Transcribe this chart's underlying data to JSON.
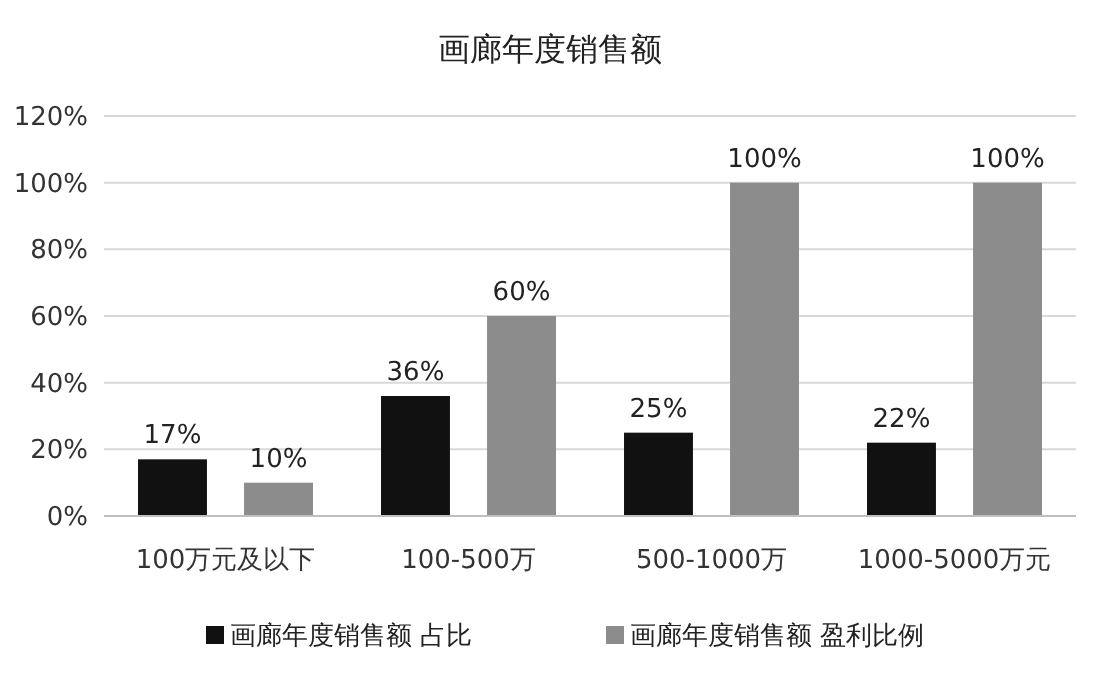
{
  "chart_data": {
    "type": "bar",
    "title": "画廊年度销售额",
    "categories": [
      "100万元及以下",
      "100-500万",
      "500-1000万",
      "1000-5000万元"
    ],
    "series": [
      {
        "name": "画廊年度销售额 占比",
        "color": "#111111",
        "values": [
          17,
          36,
          25,
          22
        ],
        "value_labels": [
          "17%",
          "36%",
          "25%",
          "22%"
        ]
      },
      {
        "name": "画廊年度销售额 盈利比例",
        "color": "#8c8c8c",
        "values": [
          10,
          60,
          100,
          100
        ],
        "value_labels": [
          "10%",
          "60%",
          "100%",
          "100%"
        ]
      }
    ],
    "ylim": [
      0,
      120
    ],
    "yticks": [
      {
        "value": 0,
        "label": "0%"
      },
      {
        "value": 20,
        "label": "20%"
      },
      {
        "value": 40,
        "label": "40%"
      },
      {
        "value": 60,
        "label": "60%"
      },
      {
        "value": 80,
        "label": "80%"
      },
      {
        "value": 100,
        "label": "100%"
      },
      {
        "value": 120,
        "label": "120%"
      }
    ],
    "grid": "y",
    "legend": "bottom"
  }
}
